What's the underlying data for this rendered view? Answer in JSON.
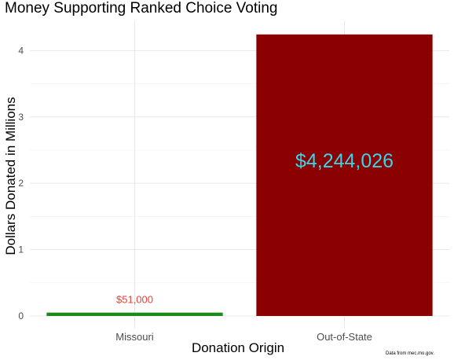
{
  "chart_data": {
    "type": "bar",
    "title": "Money Supporting Ranked Choice Voting",
    "xlabel": "Donation Origin",
    "ylabel": "Dollars Donated in Millions",
    "categories": [
      "Missouri",
      "Out-of-State"
    ],
    "values": [
      0.051,
      4.244026
    ],
    "data_labels": [
      "$51,000",
      "$4,244,026"
    ],
    "bar_colors": [
      "#1a8a1a",
      "#8b0000"
    ],
    "label_colors": [
      "#e8433a",
      "#39d5e8"
    ],
    "ylim": [
      0,
      4.35
    ],
    "yticks": [
      0,
      1,
      2,
      3,
      4
    ],
    "grid": true,
    "legend": "none",
    "source_note": "Data from mec.mo.gov."
  }
}
